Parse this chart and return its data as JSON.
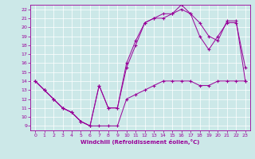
{
  "xlabel": "Windchill (Refroidissement éolien,°C)",
  "bg_color": "#cce8e8",
  "line_color": "#990099",
  "xlim": [
    -0.5,
    23.5
  ],
  "ylim": [
    8.5,
    22.5
  ],
  "xticks": [
    0,
    1,
    2,
    3,
    4,
    5,
    6,
    7,
    8,
    9,
    10,
    11,
    12,
    13,
    14,
    15,
    16,
    17,
    18,
    19,
    20,
    21,
    22,
    23
  ],
  "yticks": [
    9,
    10,
    11,
    12,
    13,
    14,
    15,
    16,
    17,
    18,
    19,
    20,
    21,
    22
  ],
  "line1_x": [
    0,
    1,
    2,
    3,
    4,
    5,
    6,
    7,
    8,
    9,
    10,
    11,
    12,
    13,
    14,
    15,
    16,
    17,
    18,
    19,
    20,
    21,
    22,
    23
  ],
  "line1_y": [
    14,
    13,
    12,
    11,
    10.5,
    9.5,
    9,
    9,
    9,
    9,
    12,
    12.5,
    13,
    13.5,
    14,
    14,
    14,
    14,
    13.5,
    13.5,
    14,
    14,
    14,
    14
  ],
  "line2_x": [
    0,
    1,
    2,
    3,
    4,
    5,
    6,
    7,
    8,
    9,
    10,
    11,
    12,
    13,
    14,
    15,
    16,
    17,
    18,
    19,
    20,
    21,
    22,
    23
  ],
  "line2_y": [
    14,
    13,
    12,
    11,
    10.5,
    9.5,
    9,
    13.5,
    11,
    11,
    15.5,
    18,
    20.5,
    21,
    21,
    21.5,
    22,
    21.5,
    19,
    17.5,
    19,
    20.5,
    20.5,
    15.5
  ],
  "line3_x": [
    0,
    1,
    2,
    3,
    4,
    5,
    6,
    7,
    8,
    9,
    10,
    11,
    12,
    13,
    14,
    15,
    16,
    17,
    18,
    19,
    20,
    21,
    22,
    23
  ],
  "line3_y": [
    14,
    13,
    12,
    11,
    10.5,
    9.5,
    9,
    13.5,
    11,
    11,
    16,
    18.5,
    20.5,
    21,
    21.5,
    21.5,
    22.5,
    21.5,
    20.5,
    19,
    18.5,
    20.7,
    20.7,
    14
  ]
}
